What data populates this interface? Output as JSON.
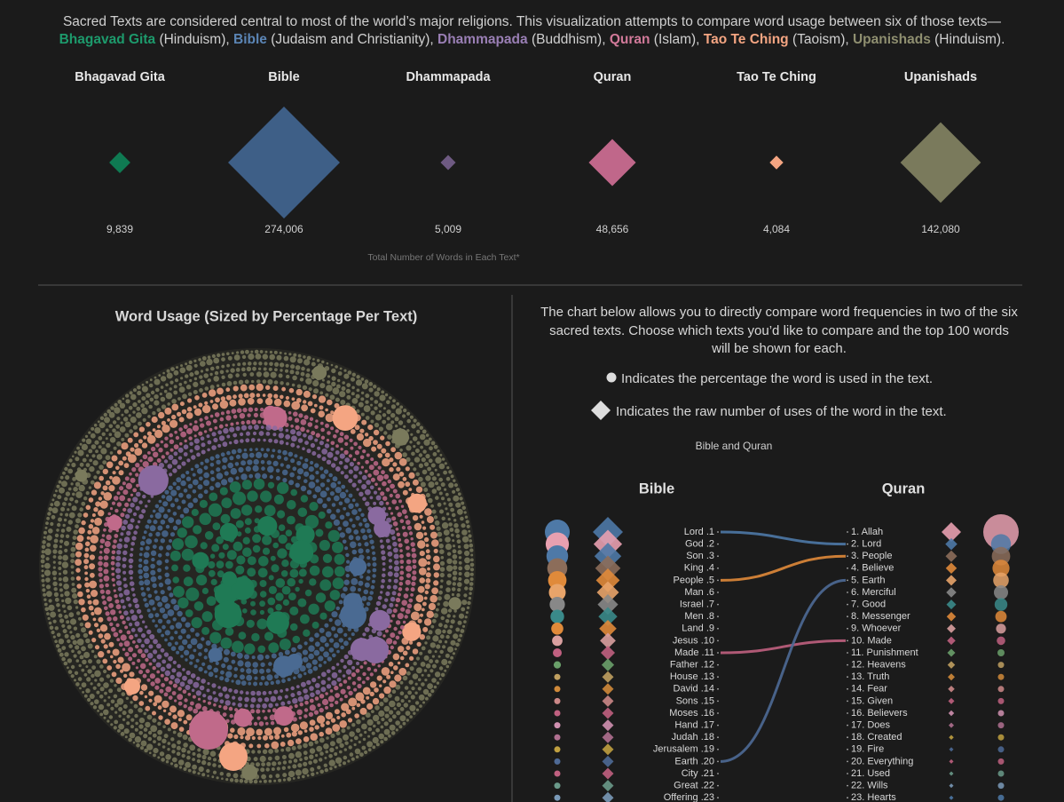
{
  "intro": {
    "segments": [
      {
        "text": "Sacred Texts are considered central to most of the world’s major religions. This visualization attempts to compare word usage between six of those texts—"
      },
      {
        "text": "Bhagavad Gita",
        "color": "#1d9a6c"
      },
      {
        "text": " (Hinduism), "
      },
      {
        "text": "Bible",
        "color": "#5b85b5"
      },
      {
        "text": " (Judaism and Christianity), "
      },
      {
        "text": "Dhammapada",
        "color": "#9a7fb5"
      },
      {
        "text": " (Buddhism), "
      },
      {
        "text": "Quran",
        "color": "#d27a9a"
      },
      {
        "text": " (Islam), "
      },
      {
        "text": "Tao Te Ching",
        "color": "#f4a582"
      },
      {
        "text": " (Taoism), "
      },
      {
        "text": "Upanishads",
        "color": "#8f8f70"
      },
      {
        "text": " (Hinduism)."
      }
    ]
  },
  "chart_data": [
    {
      "type": "diamond",
      "categories": [
        "Bhagavad Gita",
        "Bible",
        "Dhammapada",
        "Quran",
        "Tao Te Ching",
        "Upanishads"
      ],
      "values": [
        9839,
        274006,
        5009,
        48656,
        4084,
        142080
      ],
      "value_labels": [
        "9,839",
        "274,006",
        "5,009",
        "48,656",
        "4,084",
        "142,080"
      ],
      "colors": [
        "#0f7a52",
        "#3e5f87",
        "#6e5a82",
        "#c0678a",
        "#f4a582",
        "#7a7a5c"
      ],
      "caption": "Total Number of Words in Each Text*"
    },
    {
      "type": "packed-circle",
      "title": "Word Usage (Sized by Percentage Per Text)",
      "ring_colors": [
        "#7a7a5c",
        "#f4a582",
        "#c06a8a",
        "#8a6aa0",
        "#4a6a92",
        "#1f7a55"
      ]
    },
    {
      "type": "slope",
      "description": "The chart below allows you to directly compare word frequencies in two of the six sacred texts. Choose which texts you’d like to compare and the top 100 words will be shown for each.",
      "legend": [
        "Indicates the percentage the word is used in the text.",
        "Indicates the raw number of uses of the word in the text."
      ],
      "subtitle": "Bible and Quran",
      "left": {
        "name": "Bible",
        "words": [
          "Lord",
          "God",
          "Son",
          "King",
          "People",
          "Man",
          "Israel",
          "Men",
          "Land",
          "Jesus",
          "Made",
          "Father",
          "House",
          "David",
          "Sons",
          "Moses",
          "Hand",
          "Judah",
          "Jerusalem",
          "Earth",
          "City",
          "Great",
          "Offering"
        ],
        "labels": [
          "Lord .1",
          "God .2",
          "Son .3",
          "King .4",
          "People .5",
          "Man .6",
          "Israel .7",
          "Men .8",
          "Land .9",
          "Jesus .10",
          "Made .11",
          "Father .12",
          "House .13",
          "David .14",
          "Sons .15",
          "Moses .16",
          "Hand .17",
          "Judah .18",
          "Jerusalem .19",
          "Earth .20",
          "City .21",
          "Great .22",
          "Offering .23"
        ]
      },
      "right": {
        "name": "Quran",
        "words": [
          "Allah",
          "Lord",
          "People",
          "Believe",
          "Earth",
          "Merciful",
          "Good",
          "Messenger",
          "Whoever",
          "Made",
          "Punishment",
          "Heavens",
          "Truth",
          "Fear",
          "Given",
          "Believers",
          "Does",
          "Created",
          "Fire",
          "Everything",
          "Used",
          "Wills",
          "Hearts"
        ],
        "labels": [
          "1. Allah",
          "2. Lord",
          "3. People",
          "4. Believe",
          "5. Earth",
          "6. Merciful",
          "7. Good",
          "8. Messenger",
          "9. Whoever",
          "10. Made",
          "11. Punishment",
          "12. Heavens",
          "13. Truth",
          "14. Fear",
          "15. Given",
          "16. Believers",
          "17. Does",
          "18. Created",
          "19. Fire",
          "20. Everything",
          "21. Used",
          "22. Wills",
          "23. Hearts"
        ]
      },
      "rank_colors": [
        "#4e79a7",
        "#e8a0b0",
        "#4e79a7",
        "#8c6d5a",
        "#e08a3a",
        "#e8a46a",
        "#888888",
        "#3a8a8a",
        "#e08a3a",
        "#d9a0a0",
        "#c06080",
        "#6aa06a",
        "#c0a060",
        "#d08a3a",
        "#cc8888",
        "#c06080",
        "#d090b0",
        "#b07090",
        "#c0a040",
        "#4e6a96",
        "#c06080",
        "#6a9a8a",
        "#7a9ab8"
      ]
    }
  ]
}
